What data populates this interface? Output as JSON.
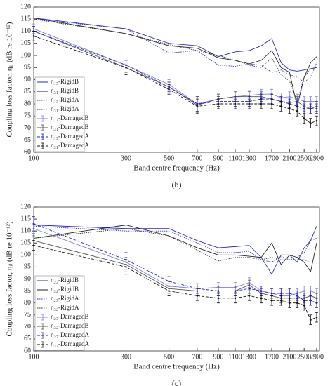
{
  "chart_data": [
    {
      "type": "line",
      "caption": "(b)",
      "x_label": "Band centre frequency (Hz)",
      "y_label": "Coupling loss factor, ηᵢⱼ (dB re 10⁻¹²)",
      "xscale": "log",
      "xlim": [
        100,
        3000
      ],
      "xticks": [
        100,
        300,
        500,
        700,
        900,
        1100,
        1300,
        1700,
        2100,
        2500,
        2900
      ],
      "ylim": [
        60,
        120
      ],
      "yticks": [
        60,
        65,
        70,
        75,
        80,
        85,
        90,
        95,
        100,
        105,
        110,
        115,
        120
      ],
      "legend": "lower left",
      "x": [
        100,
        300,
        500,
        700,
        900,
        1100,
        1300,
        1500,
        1700,
        1900,
        2100,
        2300,
        2500,
        2700,
        2900
      ],
      "series": [
        {
          "name": "η₁₃-RigidB",
          "color": "#2a2ac4",
          "dash": "solid",
          "values": [
            115.5,
            111,
            105,
            104,
            99.5,
            101.5,
            102,
            104,
            107,
            97,
            94,
            93.5,
            94,
            94.5,
            95
          ]
        },
        {
          "name": "η₃₁-RigidB",
          "color": "#222222",
          "dash": "solid",
          "values": [
            115.5,
            109,
            104,
            103,
            99,
            98,
            96.5,
            98,
            102,
            95,
            93,
            79,
            91,
            97,
            99.5
          ]
        },
        {
          "name": "η₁₃-RigidA",
          "color": "#3434d0",
          "dash": "dotted",
          "values": [
            115,
            111,
            101,
            102,
            96,
            95.5,
            96.5,
            96,
            93,
            94,
            92,
            91,
            89,
            91,
            97
          ]
        },
        {
          "name": "η₃₁-RigidA",
          "color": "#333333",
          "dash": "dotted",
          "values": [
            115,
            109,
            104.5,
            102,
            100,
            98,
            96,
            95,
            99,
            92,
            89.5,
            81,
            91,
            94.5,
            95
          ]
        },
        {
          "name": "η₁₃-DamagedB",
          "color": "#7f7fe0",
          "dash": "solid",
          "values": [
            111,
            96,
            88,
            80,
            82,
            83,
            83.5,
            84,
            84,
            82.5,
            83,
            82,
            81,
            81,
            81
          ],
          "errors": [
            2,
            3,
            2,
            3,
            2,
            2,
            2,
            2,
            2,
            2,
            2,
            2,
            2,
            2,
            2
          ]
        },
        {
          "name": "η₃₁-DamagedB",
          "color": "#555555",
          "dash": "solid",
          "values": [
            110,
            95,
            87,
            79.5,
            82,
            83,
            83,
            83,
            82,
            81,
            80.5,
            81,
            79,
            78,
            79
          ],
          "errors": [
            2,
            3,
            2,
            3,
            2,
            2,
            2,
            2,
            2,
            2,
            2,
            2,
            2,
            2,
            2
          ]
        },
        {
          "name": "η₁₃-DamagedA",
          "color": "#2020d0",
          "dash": "dashed",
          "values": [
            110,
            96,
            87,
            80,
            81,
            81,
            81,
            82,
            82,
            81,
            80,
            79,
            78,
            78,
            78
          ],
          "errors": [
            2,
            3,
            2,
            3,
            2,
            2,
            2,
            2,
            2,
            2,
            2,
            2,
            2,
            2,
            2
          ]
        },
        {
          "name": "η₃₁-DamagedA",
          "color": "#111111",
          "dash": "dashed",
          "values": [
            108,
            95,
            86,
            79,
            80,
            80,
            80,
            80,
            80,
            79,
            78,
            77,
            74,
            72,
            73
          ],
          "errors": [
            2,
            3,
            2,
            3,
            2,
            2,
            2,
            2,
            2,
            2,
            2,
            2,
            2,
            2,
            2
          ]
        }
      ]
    },
    {
      "type": "line",
      "caption": "(c)",
      "x_label": "Band centre frequency (Hz)",
      "y_label": "Coupling loss factor, ηᵢⱼ (dB re 10⁻¹²)",
      "xscale": "log",
      "xlim": [
        100,
        3000
      ],
      "xticks": [
        100,
        300,
        500,
        700,
        900,
        1100,
        1300,
        1700,
        2100,
        2500,
        2900
      ],
      "ylim": [
        60,
        120
      ],
      "yticks": [
        60,
        65,
        70,
        75,
        80,
        85,
        90,
        95,
        100,
        105,
        110,
        115,
        120
      ],
      "legend": "lower left",
      "x": [
        100,
        300,
        500,
        700,
        900,
        1100,
        1300,
        1500,
        1700,
        1900,
        2100,
        2300,
        2500,
        2700,
        2900
      ],
      "series": [
        {
          "name": "η₂₃-RigidB",
          "color": "#2a2ac4",
          "dash": "solid",
          "values": [
            112.5,
            111,
            111,
            106,
            103,
            103.5,
            104,
            99,
            92,
            100,
            100,
            97,
            103,
            106,
            112
          ]
        },
        {
          "name": "η₃₂-RigidB",
          "color": "#222222",
          "dash": "solid",
          "values": [
            107,
            112.5,
            108,
            103,
            100,
            100,
            99.5,
            99,
            105,
            96,
            100,
            99,
            97,
            93,
            105
          ]
        },
        {
          "name": "η₂₃-RigidA",
          "color": "#3434d0",
          "dash": "dotted",
          "values": [
            112,
            110,
            110,
            105,
            101,
            101,
            101.5,
            98,
            97,
            99.5,
            98,
            99,
            101,
            106,
            107
          ]
        },
        {
          "name": "η₃₂-RigidA",
          "color": "#333333",
          "dash": "dotted",
          "values": [
            107,
            111,
            108,
            102,
            97.5,
            99,
            99,
            98,
            99,
            98,
            98,
            98,
            98,
            97,
            97
          ]
        },
        {
          "name": "η₂₃-DamagedB",
          "color": "#7f7fe0",
          "dash": "solid",
          "values": [
            111,
            97,
            87,
            86,
            86.5,
            86.5,
            88.5,
            85,
            84,
            83,
            83,
            84,
            85,
            85,
            84
          ],
          "errors": [
            2,
            3,
            2,
            2,
            2,
            2,
            2,
            2,
            2,
            2,
            2,
            2,
            2,
            2,
            2
          ]
        },
        {
          "name": "η₃₂-DamagedB",
          "color": "#555555",
          "dash": "solid",
          "values": [
            106,
            96,
            86,
            85,
            85,
            85,
            87.5,
            84,
            83,
            82,
            82,
            82,
            82,
            83,
            82
          ],
          "errors": [
            2,
            3,
            2,
            2,
            2,
            2,
            2,
            2,
            2,
            2,
            2,
            2,
            2,
            2,
            2
          ]
        },
        {
          "name": "η₂₃-DamagedA",
          "color": "#2020d0",
          "dash": "dashed",
          "values": [
            113,
            98,
            89,
            86,
            85,
            85,
            86,
            85,
            84,
            84,
            84,
            83,
            81,
            81,
            80
          ],
          "errors": [
            3,
            3,
            2,
            2,
            2,
            2,
            2,
            2,
            2,
            2,
            2,
            2,
            2,
            2,
            2
          ]
        },
        {
          "name": "η₃₂-DamagedA",
          "color": "#111111",
          "dash": "dashed",
          "values": [
            104,
            95,
            85,
            83,
            82,
            82,
            83,
            82,
            81,
            81,
            80,
            80,
            79,
            73,
            74
          ],
          "errors": [
            2,
            3,
            2,
            2,
            2,
            2,
            2,
            2,
            2,
            2,
            2,
            2,
            2,
            2,
            2
          ]
        }
      ]
    }
  ]
}
